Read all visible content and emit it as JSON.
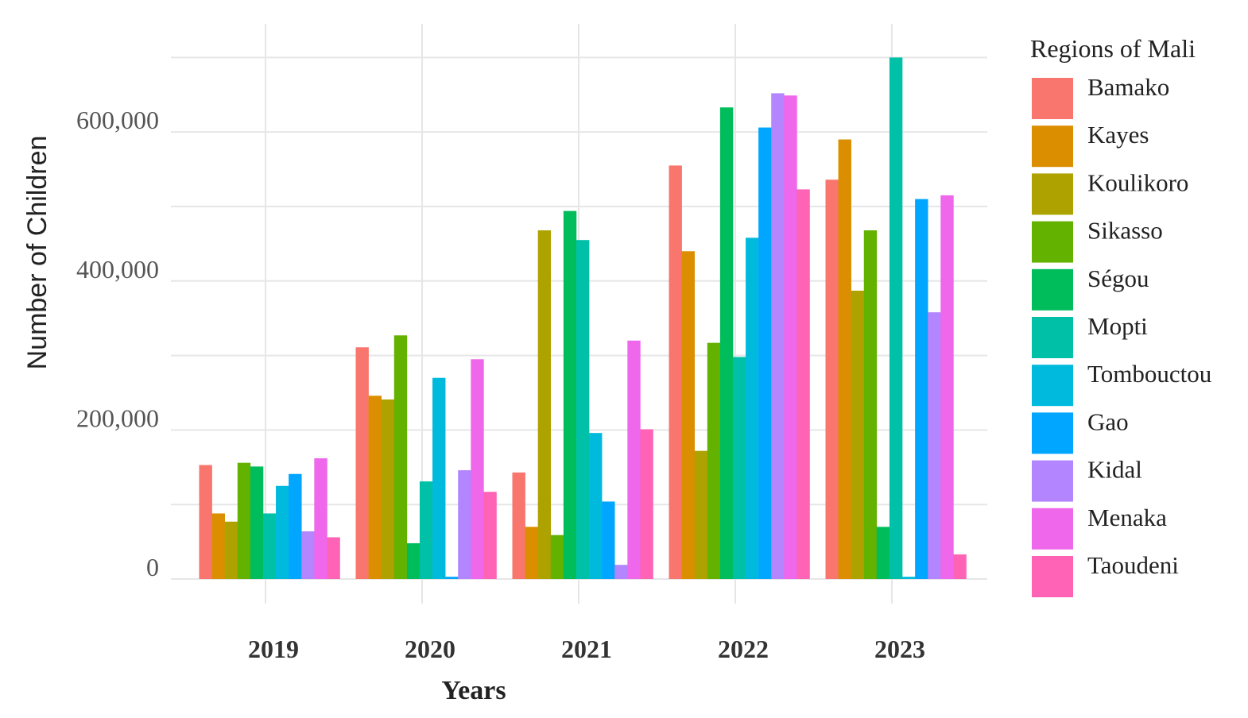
{
  "chart_data": {
    "type": "bar",
    "title": "",
    "xlabel": "Years",
    "ylabel": "Number of Children",
    "legend_title": "Regions of Mali",
    "legend_position": "right",
    "grid": true,
    "ylim": [
      0,
      710000
    ],
    "yticks": [
      0,
      200000,
      400000,
      600000
    ],
    "ytick_labels": [
      "0",
      "200,000",
      "400,000",
      "600,000"
    ],
    "categories": [
      "2019",
      "2020",
      "2021",
      "2022",
      "2023"
    ],
    "series": [
      {
        "name": "Bamako",
        "color": "#F8766D",
        "values": [
          153000,
          311000,
          143000,
          555000,
          536000
        ]
      },
      {
        "name": "Kayes",
        "color": "#DB8E00",
        "values": [
          88000,
          246000,
          70000,
          440000,
          590000
        ]
      },
      {
        "name": "Koulikoro",
        "color": "#AEA200",
        "values": [
          77000,
          241000,
          468000,
          172000,
          387000
        ]
      },
      {
        "name": "Sikasso",
        "color": "#64B200",
        "values": [
          156000,
          327000,
          59000,
          317000,
          468000
        ]
      },
      {
        "name": "Ségou",
        "color": "#00BD5C",
        "values": [
          151000,
          48000,
          494000,
          633000,
          70000
        ]
      },
      {
        "name": "Mopti",
        "color": "#00C1A7",
        "values": [
          88000,
          131000,
          455000,
          298000,
          700000
        ]
      },
      {
        "name": "Tombouctou",
        "color": "#00BADE",
        "values": [
          125000,
          270000,
          196000,
          458000,
          3000
        ]
      },
      {
        "name": "Gao",
        "color": "#00A6FF",
        "values": [
          141000,
          3000,
          104000,
          606000,
          510000
        ]
      },
      {
        "name": "Kidal",
        "color": "#B385FF",
        "values": [
          64000,
          146000,
          19000,
          652000,
          358000
        ]
      },
      {
        "name": "Menaka",
        "color": "#EF67EB",
        "values": [
          162000,
          295000,
          320000,
          649000,
          515000
        ]
      },
      {
        "name": "Taoudeni",
        "color": "#FF63B6",
        "values": [
          56000,
          117000,
          201000,
          523000,
          33000
        ]
      }
    ]
  }
}
